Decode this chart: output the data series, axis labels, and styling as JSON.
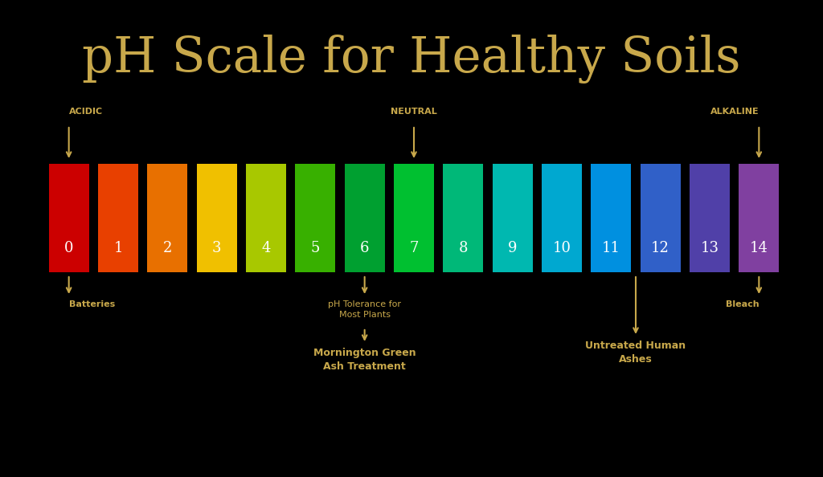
{
  "title": "pH Scale for Healthy Soils",
  "title_color": "#c8a84b",
  "title_fontsize": 44,
  "background_color": "#000000",
  "bar_colors": [
    "#cc0000",
    "#e84000",
    "#e87000",
    "#f0c000",
    "#a8c800",
    "#38b000",
    "#00a030",
    "#00c030",
    "#00b878",
    "#00b8b0",
    "#00a8d0",
    "#0090e0",
    "#3060c8",
    "#5040a8",
    "#8040a0"
  ],
  "ph_values": [
    0,
    1,
    2,
    3,
    4,
    5,
    6,
    7,
    8,
    9,
    10,
    11,
    12,
    13,
    14
  ],
  "number_color": "#ffffff",
  "label_color": "#c8a84b",
  "arrow_color": "#c8a84b"
}
